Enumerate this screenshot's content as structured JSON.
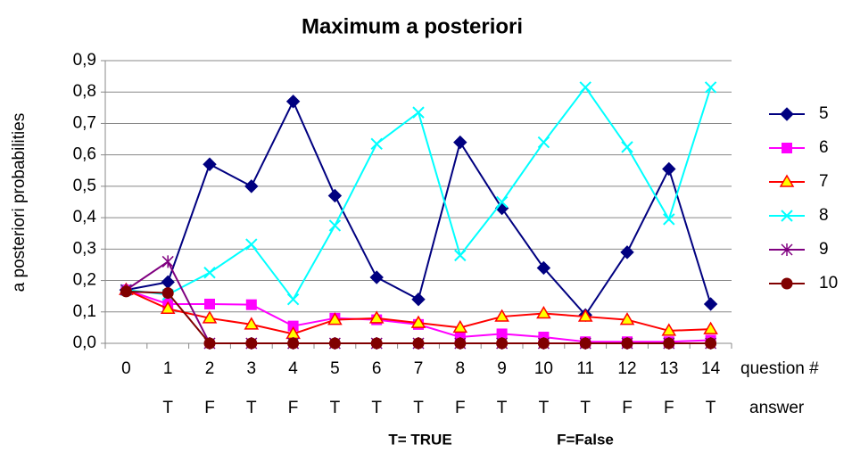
{
  "chart_data": {
    "type": "line",
    "title": "Maximum a posteriori",
    "y_label": "a posteriori probabilities",
    "x_label": "question #",
    "answer_label": "answer",
    "categories": [
      "0",
      "1",
      "2",
      "3",
      "4",
      "5",
      "6",
      "7",
      "8",
      "9",
      "10",
      "11",
      "12",
      "13",
      "14"
    ],
    "answers": [
      null,
      "T",
      "F",
      "T",
      "F",
      "T",
      "T",
      "T",
      "F",
      "T",
      "T",
      "T",
      "F",
      "F",
      "T"
    ],
    "notes": [
      "T= TRUE",
      "F=False"
    ],
    "ylim": [
      0,
      0.9
    ],
    "yticks": [
      {
        "value": 0,
        "label": "0,0"
      },
      {
        "value": 0.1,
        "label": "0,1"
      },
      {
        "value": 0.2,
        "label": "0,2"
      },
      {
        "value": 0.3,
        "label": "0,3"
      },
      {
        "value": 0.4,
        "label": "0,4"
      },
      {
        "value": 0.5,
        "label": "0,5"
      },
      {
        "value": 0.6,
        "label": "0,6"
      },
      {
        "value": 0.7,
        "label": "0,7"
      },
      {
        "value": 0.8,
        "label": "0,8"
      },
      {
        "value": 0.9,
        "label": "0,9"
      }
    ],
    "grid": true,
    "legend": "right",
    "series": [
      {
        "name": "5",
        "color": "#000080",
        "marker": "diamond",
        "values": [
          0.17,
          0.195,
          0.57,
          0.5,
          0.77,
          0.47,
          0.21,
          0.14,
          0.64,
          0.43,
          0.24,
          0.09,
          0.29,
          0.555,
          0.125
        ]
      },
      {
        "name": "6",
        "color": "#ff00ff",
        "marker": "square",
        "values": [
          0.17,
          0.125,
          0.125,
          0.123,
          0.055,
          0.08,
          0.075,
          0.06,
          0.02,
          0.03,
          0.02,
          0.005,
          0.005,
          0.005,
          0.01
        ]
      },
      {
        "name": "7",
        "color": "#ff0000",
        "marker": "triangle",
        "values": [
          0.17,
          0.11,
          0.08,
          0.06,
          0.03,
          0.075,
          0.08,
          0.065,
          0.05,
          0.085,
          0.095,
          0.085,
          0.075,
          0.04,
          0.045
        ]
      },
      {
        "name": "8",
        "color": "#00ffff",
        "marker": "x",
        "values": [
          0.17,
          0.155,
          0.225,
          0.315,
          0.14,
          0.375,
          0.635,
          0.735,
          0.28,
          0.45,
          0.64,
          0.815,
          0.625,
          0.395,
          0.815
        ]
      },
      {
        "name": "9",
        "color": "#800080",
        "marker": "star",
        "values": [
          0.17,
          0.26,
          0,
          0,
          0,
          0,
          0,
          0,
          0,
          0,
          0,
          0,
          0,
          0,
          0
        ]
      },
      {
        "name": "10",
        "color": "#800000",
        "marker": "circle",
        "values": [
          0.165,
          0.16,
          0,
          0,
          0,
          0,
          0,
          0,
          0,
          0,
          0,
          0,
          0,
          0,
          0
        ]
      }
    ]
  }
}
